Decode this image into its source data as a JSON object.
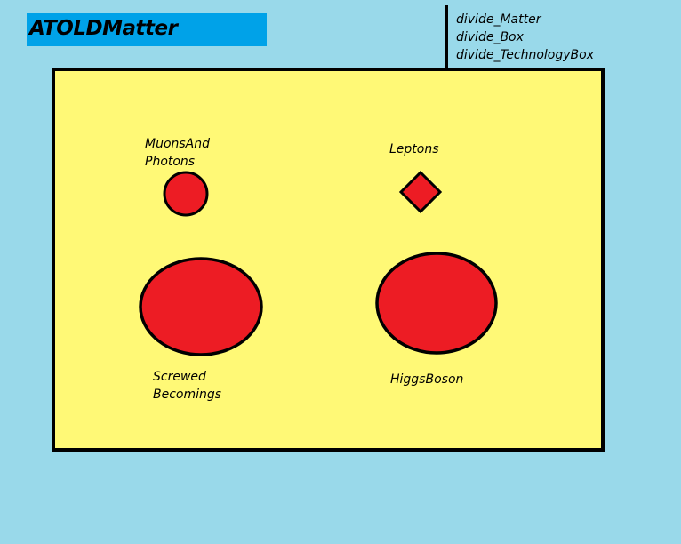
{
  "title": "ATOLDMatter",
  "legend": [
    "divide_Matter",
    "divide_Box",
    "divide_TechnologyBox"
  ],
  "box": {
    "fill": "#fff976",
    "stroke": "#000000"
  },
  "shapes": {
    "muons_photons": {
      "label_line1": "MuonsAnd",
      "label_line2": "Photons",
      "shape": "circle"
    },
    "leptons": {
      "label": "Leptons",
      "shape": "diamond"
    },
    "screwed_becomings": {
      "label_line1": "Screwed",
      "label_line2": "Becomings",
      "shape": "ellipse"
    },
    "higgs_boson": {
      "label": "HiggsBoson",
      "shape": "ellipse"
    }
  },
  "colors": {
    "background": "#99d9ea",
    "title_bar": "#00a2e8",
    "shape_fill": "#ed1c24"
  }
}
